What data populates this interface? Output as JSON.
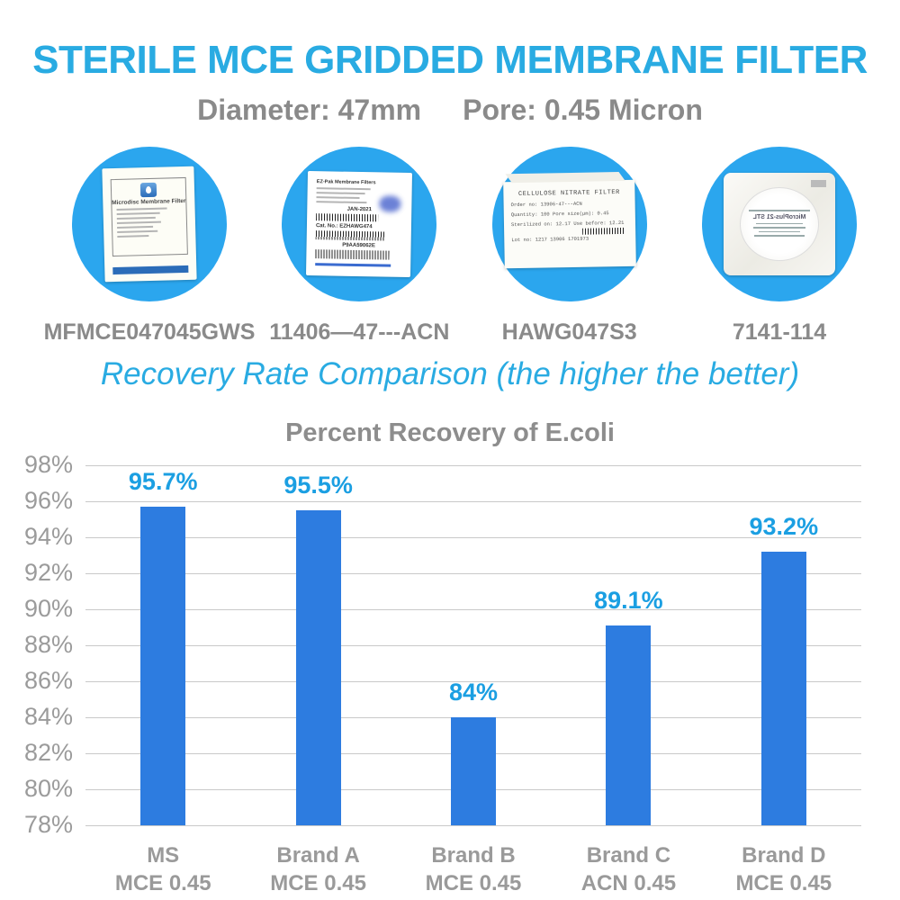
{
  "header": {
    "title": "STERILE MCE GRIDDED MEMBRANE FILTER",
    "diameter_label": "Diameter: 47mm",
    "pore_label": "Pore: 0.45 Micron"
  },
  "comparison_heading": "Recovery Rate Comparison (the higher the better)",
  "products": [
    {
      "code": "MFMCE047045GWS",
      "box_title": "Microdisc Membrane Filter"
    },
    {
      "code": "11406—47---ACN",
      "box_title": "EZ-Pak Membrane Filters",
      "date_text": "JAN-2021",
      "cat_no": "Cat. No.:  EZHAWG474",
      "serial": "P9AA59062E"
    },
    {
      "code": "HAWG047S3",
      "box_title": "CELLULOSE NITRATE FILTER",
      "rows": [
        "Order no:  13906-47---ACN",
        "Quantity: 100    Pore size(µm): 0.45",
        "Sterilized on: 12.17   Use before: 12.21",
        "Lot no:  1217 13906 1701973"
      ]
    },
    {
      "code": "7141-114",
      "pouch_text": "MicroPlus-21 STL"
    }
  ],
  "chart_data": {
    "type": "bar",
    "title": "Percent Recovery of E.coli",
    "categories": [
      {
        "line1": "MS",
        "line2": "MCE 0.45"
      },
      {
        "line1": "Brand A",
        "line2": "MCE 0.45"
      },
      {
        "line1": "Brand B",
        "line2": "MCE 0.45"
      },
      {
        "line1": "Brand C",
        "line2": "ACN 0.45"
      },
      {
        "line1": "Brand D",
        "line2": "MCE 0.45"
      }
    ],
    "values": [
      95.7,
      95.5,
      84,
      89.1,
      93.2
    ],
    "value_labels": [
      "95.7%",
      "95.5%",
      "84%",
      "89.1%",
      "93.2%"
    ],
    "ylabel": "",
    "xlabel": "",
    "ylim": [
      78,
      98
    ],
    "ytick_step": 2,
    "ytick_suffix": "%",
    "grid": true,
    "legend": "none",
    "bar_color": "#2d7ce0",
    "value_label_color": "#1b9fe2"
  },
  "colors": {
    "accent_cyan": "#29abe2",
    "bar_blue": "#2d7ce0",
    "circle_azure": "#2ba6ee",
    "gray_text": "#8a8a8a"
  }
}
